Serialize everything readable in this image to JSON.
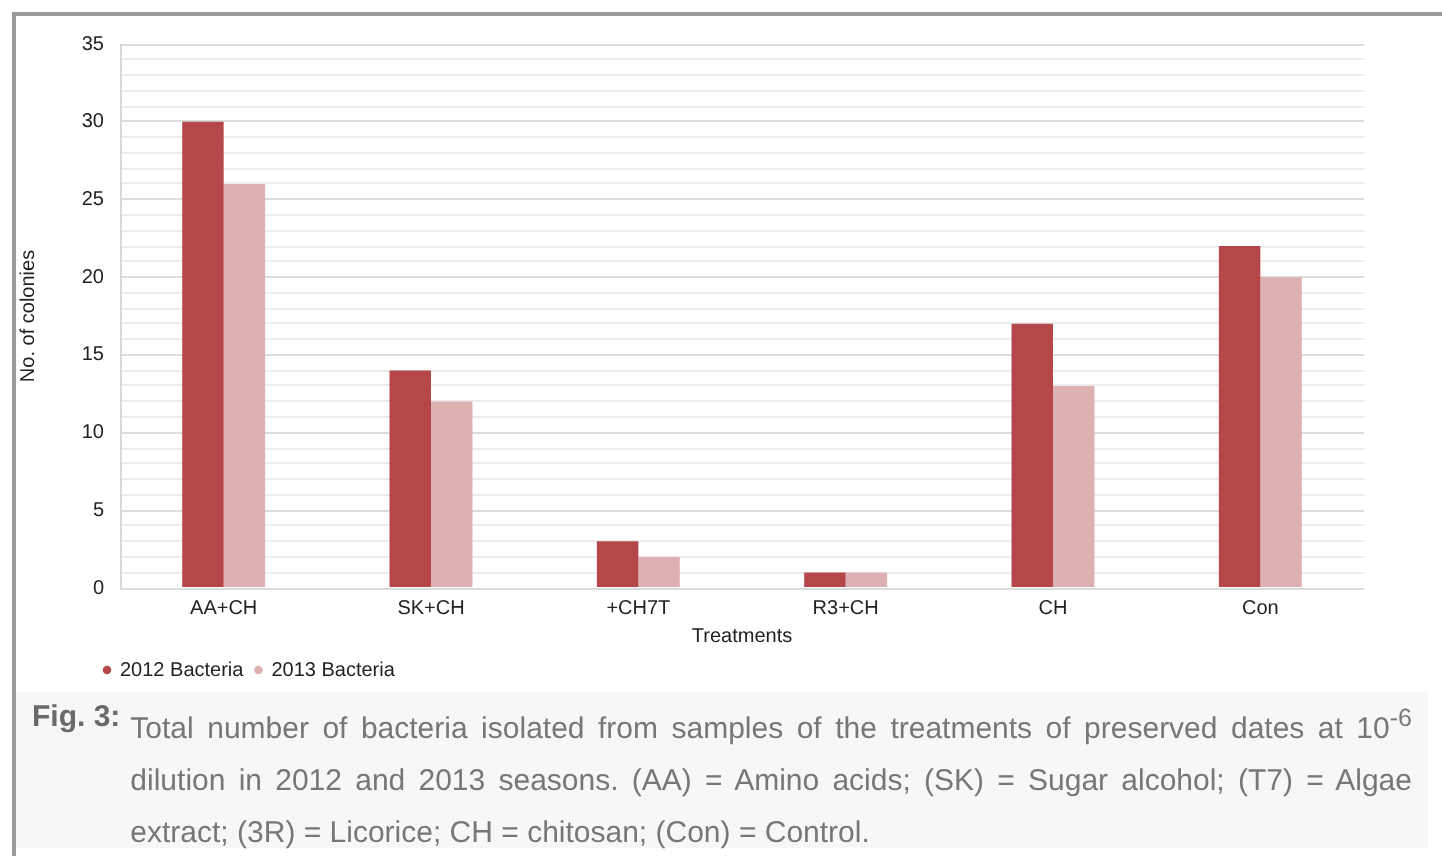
{
  "chart_data": {
    "type": "bar",
    "categories": [
      "AA+CH",
      "SK+CH",
      "+CH7T",
      "R3+CH",
      "CH",
      "Con"
    ],
    "series": [
      {
        "name": "2012 Bacteria",
        "color": "#b5474a",
        "values": [
          30,
          14,
          3,
          1,
          17,
          22
        ]
      },
      {
        "name": "2013 Bacteria",
        "color": "#ddb0b1",
        "values": [
          26,
          12,
          2,
          1,
          13,
          20
        ]
      }
    ],
    "xlabel": "Treatments",
    "ylabel": "No. of colonies",
    "ylim": [
      0,
      35
    ],
    "yticks": [
      0,
      {
        "value": 1,
        "label": null
      },
      {
        "value": 2,
        "label": null
      },
      {
        "value": 3,
        "label": null
      },
      {
        "value": 4,
        "label": null
      },
      5,
      {
        "value": 6,
        "label": null
      },
      {
        "value": 7,
        "label": null
      },
      {
        "value": 8,
        "label": null
      },
      {
        "value": 9,
        "label": null
      },
      10,
      {
        "value": 11,
        "label": null
      },
      {
        "value": 12,
        "label": null
      },
      {
        "value": 13,
        "label": null
      },
      {
        "value": 14,
        "label": null
      },
      15,
      {
        "value": 16,
        "label": null
      },
      {
        "value": 17,
        "label": null
      },
      {
        "value": 18,
        "label": null
      },
      {
        "value": 19,
        "label": null
      },
      20,
      {
        "value": 21,
        "label": null
      },
      {
        "value": 22,
        "label": null
      },
      {
        "value": 23,
        "label": null
      },
      {
        "value": 24,
        "label": null
      },
      25,
      {
        "value": 26,
        "label": null
      },
      {
        "value": 27,
        "label": null
      },
      {
        "value": 28,
        "label": null
      },
      {
        "value": 29,
        "label": null
      },
      30,
      {
        "value": 31,
        "label": null
      },
      {
        "value": 32,
        "label": null
      },
      {
        "value": 33,
        "label": null
      },
      {
        "value": 34,
        "label": null
      },
      35
    ],
    "grid": "y",
    "legend": "bottom left",
    "annotations": [
      "Fig. 3:",
      "Total number of bacteria isolated from samples of the treatments of preserved dates at 10$^{-6}$ dilution in 2012 and 2013 seasons. (AA) = Amino acids; (SK) = Sugar alcohol; (T7) = Algae extract; (3R) = Licorice; CH = chitosan; (Con) = Control."
    ]
  }
}
